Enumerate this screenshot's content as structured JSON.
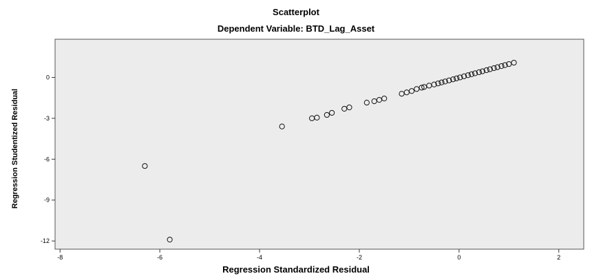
{
  "chart_data": {
    "type": "scatter",
    "title": "Scatterplot",
    "subtitle": "Dependent Variable: BTD_Lag_Asset",
    "xlabel": "Regression Standardized Residual",
    "ylabel": "Regression Studentized Residual",
    "xlim": [
      -8.1,
      2.5
    ],
    "ylim": [
      -12.6,
      2.8
    ],
    "xticks": [
      -8,
      -6,
      -4,
      -2,
      0,
      2
    ],
    "yticks": [
      0,
      -3,
      -6,
      -9,
      -12
    ],
    "xtick_labels": [
      "-8",
      "-6",
      "-4",
      "-2",
      "0",
      "2"
    ],
    "ytick_labels": [
      "0",
      "-3",
      "-6",
      "-9",
      "-12"
    ],
    "grid": false,
    "background": "#ececec",
    "marker": "hollow-circle",
    "points": [
      [
        -6.3,
        -6.5
      ],
      [
        -5.8,
        -11.9
      ],
      [
        -3.55,
        -3.6
      ],
      [
        -2.95,
        -3.0
      ],
      [
        -2.85,
        -2.95
      ],
      [
        -2.65,
        -2.75
      ],
      [
        -2.55,
        -2.6
      ],
      [
        -2.3,
        -2.3
      ],
      [
        -2.2,
        -2.2
      ],
      [
        -1.85,
        -1.85
      ],
      [
        -1.7,
        -1.75
      ],
      [
        -1.6,
        -1.65
      ],
      [
        -1.5,
        -1.55
      ],
      [
        -1.15,
        -1.2
      ],
      [
        -1.05,
        -1.1
      ],
      [
        -0.95,
        -1.0
      ],
      [
        -0.85,
        -0.85
      ],
      [
        -0.75,
        -0.75
      ],
      [
        -0.7,
        -0.7
      ],
      [
        -0.6,
        -0.6
      ],
      [
        -0.5,
        -0.52
      ],
      [
        -0.42,
        -0.44
      ],
      [
        -0.35,
        -0.37
      ],
      [
        -0.28,
        -0.3
      ],
      [
        -0.2,
        -0.22
      ],
      [
        -0.12,
        -0.14
      ],
      [
        -0.05,
        -0.07
      ],
      [
        0.02,
        0.0
      ],
      [
        0.1,
        0.08
      ],
      [
        0.18,
        0.16
      ],
      [
        0.25,
        0.23
      ],
      [
        0.32,
        0.3
      ],
      [
        0.4,
        0.38
      ],
      [
        0.47,
        0.45
      ],
      [
        0.55,
        0.53
      ],
      [
        0.62,
        0.6
      ],
      [
        0.7,
        0.68
      ],
      [
        0.77,
        0.75
      ],
      [
        0.85,
        0.83
      ],
      [
        0.92,
        0.9
      ],
      [
        1.0,
        0.98
      ],
      [
        1.1,
        1.08
      ]
    ]
  }
}
